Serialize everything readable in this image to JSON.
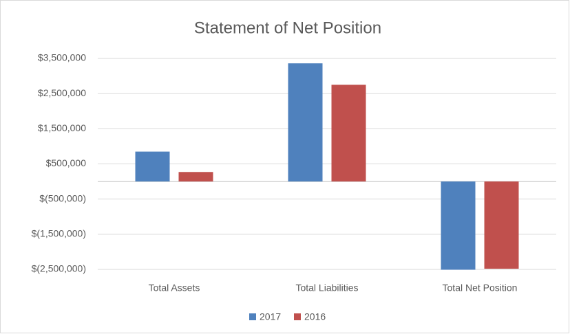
{
  "chart_data": {
    "type": "bar",
    "title": "Statement of Net Position",
    "categories": [
      "Total Assets",
      "Total Liabilities",
      "Total Net Position"
    ],
    "series": [
      {
        "name": "2017",
        "color": "#4f81bd",
        "values": [
          850000,
          3360000,
          -2510000
        ]
      },
      {
        "name": "2016",
        "color": "#c0504d",
        "values": [
          270000,
          2750000,
          -2480000
        ]
      }
    ],
    "ylim": [
      -2500000,
      3500000
    ],
    "yticks": [
      {
        "value": -2500000,
        "label": "$(2,500,000)"
      },
      {
        "value": -1500000,
        "label": "$(1,500,000)"
      },
      {
        "value": -500000,
        "label": "$(500,000)"
      },
      {
        "value": 500000,
        "label": "$500,000"
      },
      {
        "value": 1500000,
        "label": "$1,500,000"
      },
      {
        "value": 2500000,
        "label": "$2,500,000"
      },
      {
        "value": 3500000,
        "label": "$3,500,000"
      }
    ],
    "grid": true,
    "legend": "bottom"
  }
}
